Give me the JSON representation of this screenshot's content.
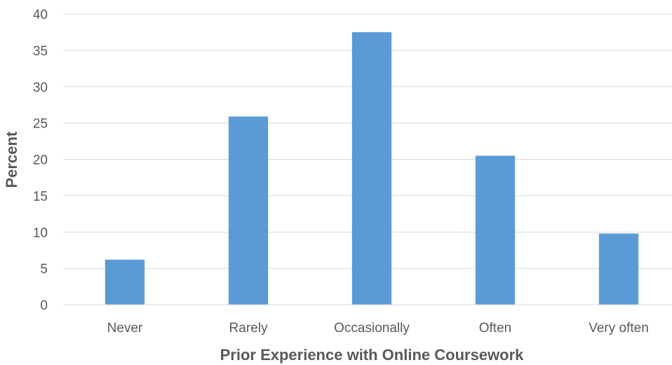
{
  "chart_data": {
    "type": "bar",
    "categories": [
      "Never",
      "Rarely",
      "Occasionally",
      "Often",
      "Very often"
    ],
    "values": [
      6.2,
      25.9,
      37.5,
      20.5,
      9.8
    ],
    "xlabel": "Prior Experience with Online Coursework",
    "ylabel": "Percent",
    "ylim": [
      0,
      40
    ],
    "yticks": [
      0,
      5,
      10,
      15,
      20,
      25,
      30,
      35,
      40
    ],
    "grid": true,
    "legend": "none",
    "bar_color": "#5b9bd5"
  }
}
